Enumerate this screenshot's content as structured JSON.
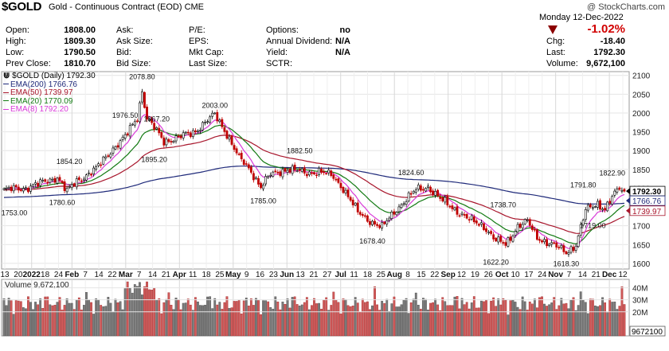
{
  "header": {
    "ticker": "$GOLD",
    "name": "Gold - Continuous Contract (EOD)",
    "exchange": "CME",
    "watermark": "@ StockCharts.com",
    "date": "Monday  12-Dec-2022",
    "change_pct": "-1.02%",
    "col1": [
      {
        "label": "Open:",
        "value": "1808.00"
      },
      {
        "label": "High:",
        "value": "1809.30"
      },
      {
        "label": "Low:",
        "value": "1790.50"
      },
      {
        "label": "Prev Close:",
        "value": "1810.70"
      }
    ],
    "col2": [
      {
        "label": "Ask:",
        "value": ""
      },
      {
        "label": "Ask Size:",
        "value": ""
      },
      {
        "label": "Bid:",
        "value": ""
      },
      {
        "label": "Bid Size:",
        "value": ""
      }
    ],
    "col3": [
      {
        "label": "P/E:",
        "value": ""
      },
      {
        "label": "EPS:",
        "value": ""
      },
      {
        "label": "Mkt Cap:",
        "value": ""
      },
      {
        "label": "Last Size:",
        "value": ""
      }
    ],
    "col4": [
      {
        "label": "Options:",
        "value": "no"
      },
      {
        "label": "Annual Dividend:",
        "value": "N/A"
      },
      {
        "label": "Yield:",
        "value": "N/A"
      },
      {
        "label": "SCTR:",
        "value": ""
      }
    ],
    "col5": [
      {
        "label": "Chg:",
        "value": "-18.40"
      },
      {
        "label": "Last:",
        "value": "1792.30"
      },
      {
        "label": "Volume:",
        "value": "9,672,100"
      }
    ]
  },
  "legend": {
    "title": "$GOLD (Daily) 1792.30",
    "items": [
      {
        "label": "EMA(200) 1766.76",
        "color": "#1f2a7a"
      },
      {
        "label": "EMA(50) 1739.97",
        "color": "#a8162c"
      },
      {
        "label": "EMA(20) 1770.09",
        "color": "#137a13"
      },
      {
        "label": "EMA(8) 1792.20",
        "color": "#d93ad9"
      }
    ]
  },
  "volume_legend": "Volume 9,672,100",
  "chart_data": {
    "type": "candlestick",
    "title": "$GOLD (Daily) 1792.30",
    "x_labels": [
      "13",
      "20",
      "2022",
      "18",
      "24",
      "Feb",
      "7",
      "14",
      "22",
      "Mar",
      "7",
      "14",
      "21",
      "Apr",
      "11",
      "18",
      "25",
      "May",
      "9",
      "16",
      "23",
      "Jun",
      "13",
      "21",
      "27",
      "Jul",
      "11",
      "18",
      "25",
      "Aug",
      "8",
      "15",
      "22",
      "Sep",
      "12",
      "19",
      "26",
      "Oct",
      "10",
      "17",
      "24",
      "Nov",
      "7",
      "14",
      "21",
      "Dec",
      "12"
    ],
    "y_ticks": [
      1600,
      1650,
      1700,
      1750,
      1800,
      1850,
      1900,
      1950,
      2000,
      2050,
      2100
    ],
    "ylim": [
      1585,
      2110
    ],
    "price_anchors": [
      {
        "i": 0,
        "v": 1795
      },
      {
        "i": 8,
        "v": 1800
      },
      {
        "i": 15,
        "v": 1812
      },
      {
        "i": 22,
        "v": 1830
      },
      {
        "i": 26,
        "v": 1790
      },
      {
        "i": 30,
        "v": 1820
      },
      {
        "i": 38,
        "v": 1850
      },
      {
        "i": 44,
        "v": 1900
      },
      {
        "i": 50,
        "v": 1935
      },
      {
        "i": 55,
        "v": 1990
      },
      {
        "i": 57,
        "v": 2060
      },
      {
        "i": 59,
        "v": 1985
      },
      {
        "i": 62,
        "v": 1960
      },
      {
        "i": 66,
        "v": 1925
      },
      {
        "i": 72,
        "v": 1935
      },
      {
        "i": 78,
        "v": 1948
      },
      {
        "i": 83,
        "v": 1975
      },
      {
        "i": 87,
        "v": 1995
      },
      {
        "i": 92,
        "v": 1945
      },
      {
        "i": 97,
        "v": 1880
      },
      {
        "i": 102,
        "v": 1845
      },
      {
        "i": 106,
        "v": 1805
      },
      {
        "i": 110,
        "v": 1835
      },
      {
        "i": 117,
        "v": 1852
      },
      {
        "i": 124,
        "v": 1840
      },
      {
        "i": 130,
        "v": 1845
      },
      {
        "i": 136,
        "v": 1830
      },
      {
        "i": 140,
        "v": 1800
      },
      {
        "i": 146,
        "v": 1735
      },
      {
        "i": 152,
        "v": 1710
      },
      {
        "i": 156,
        "v": 1695
      },
      {
        "i": 162,
        "v": 1745
      },
      {
        "i": 170,
        "v": 1795
      },
      {
        "i": 175,
        "v": 1805
      },
      {
        "i": 180,
        "v": 1770
      },
      {
        "i": 186,
        "v": 1745
      },
      {
        "i": 192,
        "v": 1715
      },
      {
        "i": 198,
        "v": 1700
      },
      {
        "i": 203,
        "v": 1660
      },
      {
        "i": 207,
        "v": 1650
      },
      {
        "i": 212,
        "v": 1700
      },
      {
        "i": 216,
        "v": 1710
      },
      {
        "i": 220,
        "v": 1670
      },
      {
        "i": 226,
        "v": 1650
      },
      {
        "i": 232,
        "v": 1630
      },
      {
        "i": 236,
        "v": 1650
      },
      {
        "i": 240,
        "v": 1740
      },
      {
        "i": 245,
        "v": 1760
      },
      {
        "i": 248,
        "v": 1745
      },
      {
        "i": 251,
        "v": 1775
      },
      {
        "i": 254,
        "v": 1800
      },
      {
        "i": 256,
        "v": 1792
      }
    ],
    "annotations": [
      {
        "text": "1753.00",
        "i": 0,
        "v": 1753
      },
      {
        "text": "1854.20",
        "i": 27,
        "v": 1854.2
      },
      {
        "text": "1780.60",
        "i": 24,
        "v": 1780.6
      },
      {
        "text": "1976.50",
        "i": 50,
        "v": 1976.5
      },
      {
        "text": "2078.80",
        "i": 57,
        "v": 2078.8
      },
      {
        "text": "1967.20",
        "i": 63,
        "v": 1967.2
      },
      {
        "text": "1895.20",
        "i": 62,
        "v": 1895.2
      },
      {
        "text": "2003.00",
        "i": 87,
        "v": 2003
      },
      {
        "text": "1785.00",
        "i": 107,
        "v": 1785
      },
      {
        "text": "1882.50",
        "i": 122,
        "v": 1882.5
      },
      {
        "text": "1678.40",
        "i": 152,
        "v": 1678.4
      },
      {
        "text": "1824.60",
        "i": 168,
        "v": 1824.6
      },
      {
        "text": "1738.70",
        "i": 206,
        "v": 1738.7
      },
      {
        "text": "1622.20",
        "i": 203,
        "v": 1622.2
      },
      {
        "text": "1618.30",
        "i": 232,
        "v": 1618.3
      },
      {
        "text": "1719.00",
        "i": 243,
        "v": 1719
      },
      {
        "text": "1791.80",
        "i": 239,
        "v": 1791.8
      },
      {
        "text": "1822.90",
        "i": 251,
        "v": 1822.9
      }
    ],
    "right_labels": [
      {
        "text": "1792.30",
        "v": 1792.3,
        "color": "#000000",
        "bold": true
      },
      {
        "text": "1766.76",
        "v": 1766.76,
        "color": "#1f2a7a",
        "bold": false
      },
      {
        "text": "1739.97",
        "v": 1739.97,
        "color": "#a8162c",
        "bold": false
      }
    ],
    "volume": {
      "label": "Volume 9,672,100",
      "y_ticks": [
        "40M",
        "30M",
        "20M"
      ],
      "last_value": "9672100"
    }
  }
}
